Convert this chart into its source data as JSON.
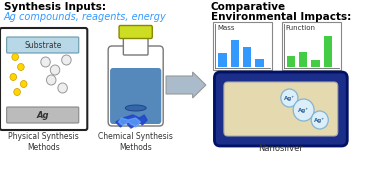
{
  "title_left": "Synthesis Inputs:",
  "subtitle_left": "Ag compounds, reagents, energy",
  "title_right_line1": "Comparative",
  "title_right_line2": "Environmental Impacts:",
  "label_phys": "Physical Synthesis\nMethods",
  "label_chem": "Chemical Synthesis\nMethods",
  "label_nano": "Nanosilver",
  "mass_bars": [
    0.38,
    0.75,
    0.55,
    0.22
  ],
  "func_bars": [
    0.3,
    0.42,
    0.2,
    0.85
  ],
  "bar_color_blue": "#3399FF",
  "bar_color_green": "#44CC44",
  "title_color": "#000000",
  "subtitle_color": "#3399FF",
  "bg_color": "#FFFFFF",
  "arrow_color": "#AABBCC",
  "arrow_edge": "#999999"
}
